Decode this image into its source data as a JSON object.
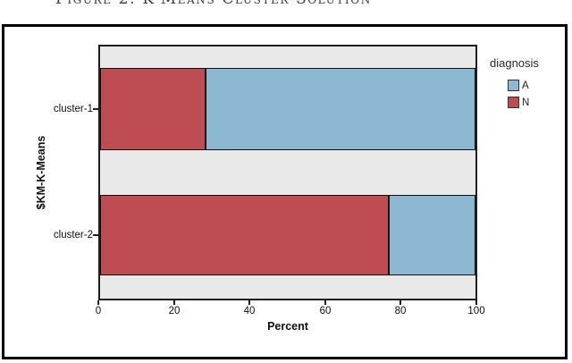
{
  "caption": "Figure 2: K-Means Cluster Solution",
  "chart_data": {
    "type": "bar",
    "orientation": "horizontal",
    "stacked": true,
    "units": "percent",
    "title": "",
    "categories": [
      "cluster-1",
      "cluster-2"
    ],
    "series": [
      {
        "name": "A",
        "color": "#8db8d1",
        "values": [
          72,
          23
        ]
      },
      {
        "name": "N",
        "color": "#bf4b53",
        "values": [
          28,
          77
        ]
      }
    ],
    "stack_order": [
      "N",
      "A"
    ],
    "legend_title": "diagnosis",
    "legend_position": "right",
    "xlabel": "Percent",
    "ylabel": "$KM-K-Means",
    "xlim": [
      0,
      100
    ],
    "xticks": [
      "0",
      "20",
      "40",
      "60",
      "80",
      "100"
    ],
    "grid": false,
    "plot_background": "#e9e9e9",
    "frame_color": "#000000"
  }
}
